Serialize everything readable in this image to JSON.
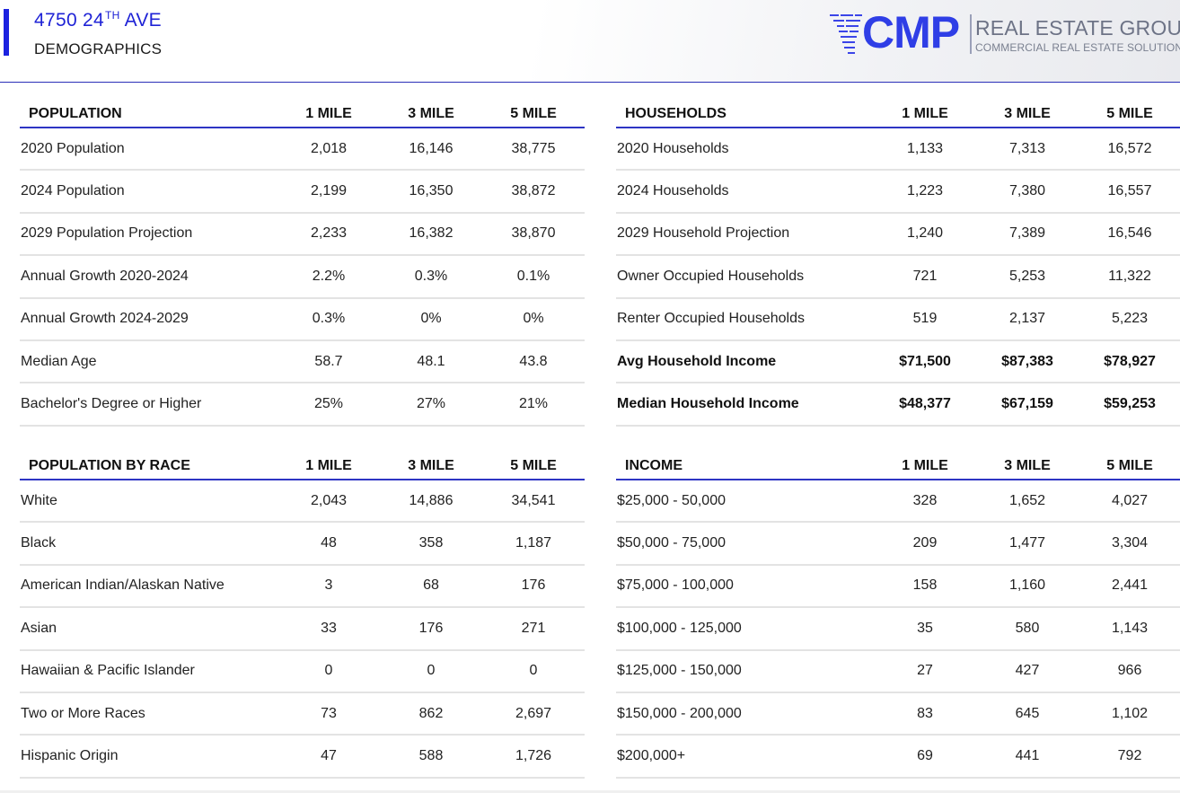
{
  "header": {
    "address_main": "4750 24",
    "address_sup": "TH",
    "address_tail": " AVE",
    "subtitle": "DEMOGRAPHICS"
  },
  "logo": {
    "brand": "CMP",
    "name": "REAL ESTATE GROUP",
    "tagline": "COMMERCIAL REAL ESTATE SOLUTIONS",
    "brand_color": "#2f3ee6"
  },
  "colors": {
    "accent": "#1c22e0",
    "rule": "#2e35c4",
    "row_divider": "#e3e3e3"
  },
  "tables": {
    "population": {
      "headers": [
        "POPULATION",
        "1 MILE",
        "3 MILE",
        "5 MILE"
      ],
      "rows": [
        [
          "2020 Population",
          "2,018",
          "16,146",
          "38,775"
        ],
        [
          "2024 Population",
          "2,199",
          "16,350",
          "38,872"
        ],
        [
          "2029 Population Projection",
          "2,233",
          "16,382",
          "38,870"
        ],
        [
          "Annual Growth 2020-2024",
          "2.2%",
          "0.3%",
          "0.1%"
        ],
        [
          "Annual Growth 2024-2029",
          "0.3%",
          "0%",
          "0%"
        ],
        [
          "Median Age",
          "58.7",
          "48.1",
          "43.8"
        ],
        [
          "Bachelor's Degree or Higher",
          "25%",
          "27%",
          "21%"
        ]
      ]
    },
    "households": {
      "headers": [
        "HOUSEHOLDS",
        "1 MILE",
        "3 MILE",
        "5 MILE"
      ],
      "rows": [
        [
          "2020 Households",
          "1,133",
          "7,313",
          "16,572"
        ],
        [
          "2024 Households",
          "1,223",
          "7,380",
          "16,557"
        ],
        [
          "2029 Household Projection",
          "1,240",
          "7,389",
          "16,546"
        ],
        [
          "Owner Occupied Households",
          "721",
          "5,253",
          "11,322"
        ],
        [
          "Renter Occupied Households",
          "519",
          "2,137",
          "5,223"
        ],
        [
          "Avg Household Income",
          "$71,500",
          "$87,383",
          "$78,927"
        ],
        [
          "Median Household Income",
          "$48,377",
          "$67,159",
          "$59,253"
        ]
      ]
    },
    "race": {
      "headers": [
        "POPULATION BY RACE",
        "1 MILE",
        "3 MILE",
        "5 MILE"
      ],
      "rows": [
        [
          "White",
          "2,043",
          "14,886",
          "34,541"
        ],
        [
          "Black",
          "48",
          "358",
          "1,187"
        ],
        [
          "American Indian/Alaskan Native",
          "3",
          "68",
          "176"
        ],
        [
          "Asian",
          "33",
          "176",
          "271"
        ],
        [
          "Hawaiian & Pacific Islander",
          "0",
          "0",
          "0"
        ],
        [
          "Two or More Races",
          "73",
          "862",
          "2,697"
        ],
        [
          "Hispanic Origin",
          "47",
          "588",
          "1,726"
        ]
      ]
    },
    "income": {
      "headers": [
        "INCOME",
        "1 MILE",
        "3 MILE",
        "5 MILE"
      ],
      "rows": [
        [
          "$25,000 - 50,000",
          "328",
          "1,652",
          "4,027"
        ],
        [
          "$50,000 - 75,000",
          "209",
          "1,477",
          "3,304"
        ],
        [
          "$75,000 - 100,000",
          "158",
          "1,160",
          "2,441"
        ],
        [
          "$100,000 - 125,000",
          "35",
          "580",
          "1,143"
        ],
        [
          "$125,000 - 150,000",
          "27",
          "427",
          "966"
        ],
        [
          "$150,000 - 200,000",
          "83",
          "645",
          "1,102"
        ],
        [
          "$200,000+",
          "69",
          "441",
          "792"
        ]
      ]
    }
  }
}
